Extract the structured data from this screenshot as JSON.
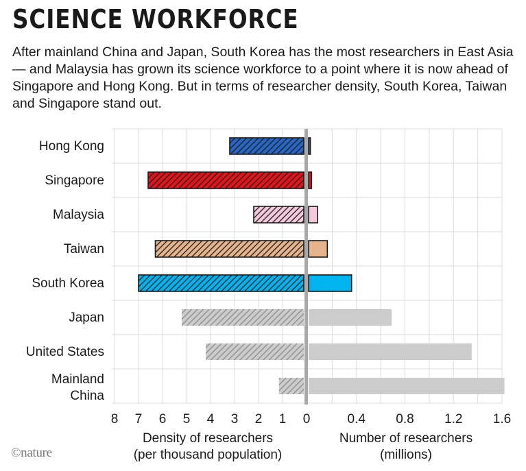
{
  "title": "SCIENCE WORKFORCE",
  "subtitle": "After mainland China and Japan, South Korea has the most researchers in East Asia — and Malaysia has grown its science workforce to a point where it is now ahead of Singapore and Hong Kong. But in terms of researcher density, South Korea, Taiwan and Singapore stand out.",
  "logo": "©nature",
  "chart_data": {
    "type": "bar",
    "orientation": "horizontal",
    "categories": [
      "Hong Kong",
      "Singapore",
      "Malaysia",
      "Taiwan",
      "South Korea",
      "Japan",
      "United States",
      "Mainland\nChina"
    ],
    "series": [
      {
        "values": [
          3.2,
          6.6,
          2.2,
          6.3,
          7.0,
          5.2,
          4.2,
          1.15
        ]
      },
      {
        "values": [
          0.02,
          0.03,
          0.08,
          0.16,
          0.36,
          0.69,
          1.35,
          1.62
        ]
      }
    ],
    "colors": [
      "#2766c2",
      "#e2141b",
      "#f6c8dc",
      "#e6b48c",
      "#00b4f0",
      "#cccccc",
      "#cccccc",
      "#cccccc"
    ],
    "left_axis": {
      "label": "Density of researchers\n(per thousand population)",
      "range": [
        8,
        0
      ],
      "reversed": true,
      "ticks": [
        "8",
        "7",
        "6",
        "5",
        "4",
        "3",
        "2",
        "1",
        "0"
      ]
    },
    "right_axis": {
      "label": "Number of researchers\n(millions)",
      "range": [
        0,
        1.6
      ],
      "ticks": [
        "0",
        "0.4",
        "0.8",
        "1.2",
        "1.6"
      ]
    },
    "grid": true,
    "left_pattern": "diagonal-hatch"
  }
}
